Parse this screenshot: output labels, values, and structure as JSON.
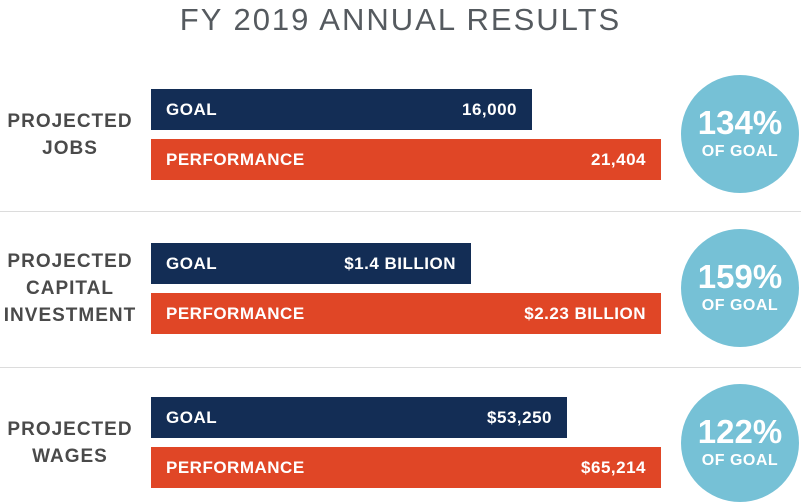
{
  "chart_data": {
    "type": "bar",
    "orientation": "horizontal",
    "title": "FY 2019 ANNUAL RESULTS",
    "groups": [
      {
        "label": "PROJECTED\nJOBS",
        "goal": {
          "label": "GOAL",
          "value": 16000,
          "display": "16,000"
        },
        "performance": {
          "label": "PERFORMANCE",
          "value": 21404,
          "display": "21,404"
        },
        "percent_of_goal": {
          "value": "134%",
          "label": "OF GOAL"
        }
      },
      {
        "label": "PROJECTED\nCAPITAL\nINVESTMENT",
        "goal": {
          "label": "GOAL",
          "value": 1.4,
          "display": "$1.4 BILLION"
        },
        "performance": {
          "label": "PERFORMANCE",
          "value": 2.23,
          "display": "$2.23 BILLION"
        },
        "percent_of_goal": {
          "value": "159%",
          "label": "OF GOAL"
        }
      },
      {
        "label": "PROJECTED\nWAGES",
        "goal": {
          "label": "GOAL",
          "value": 53250,
          "display": "$53,250"
        },
        "performance": {
          "label": "PERFORMANCE",
          "value": 65214,
          "display": "$65,214"
        },
        "percent_of_goal": {
          "value": "122%",
          "label": "OF GOAL"
        }
      }
    ],
    "colors": {
      "goal": "#132d55",
      "performance": "#e04626",
      "badge": "#76c1d6",
      "title": "#555a5f",
      "label": "#4a4a4a"
    },
    "grid": false,
    "legend": "none"
  }
}
